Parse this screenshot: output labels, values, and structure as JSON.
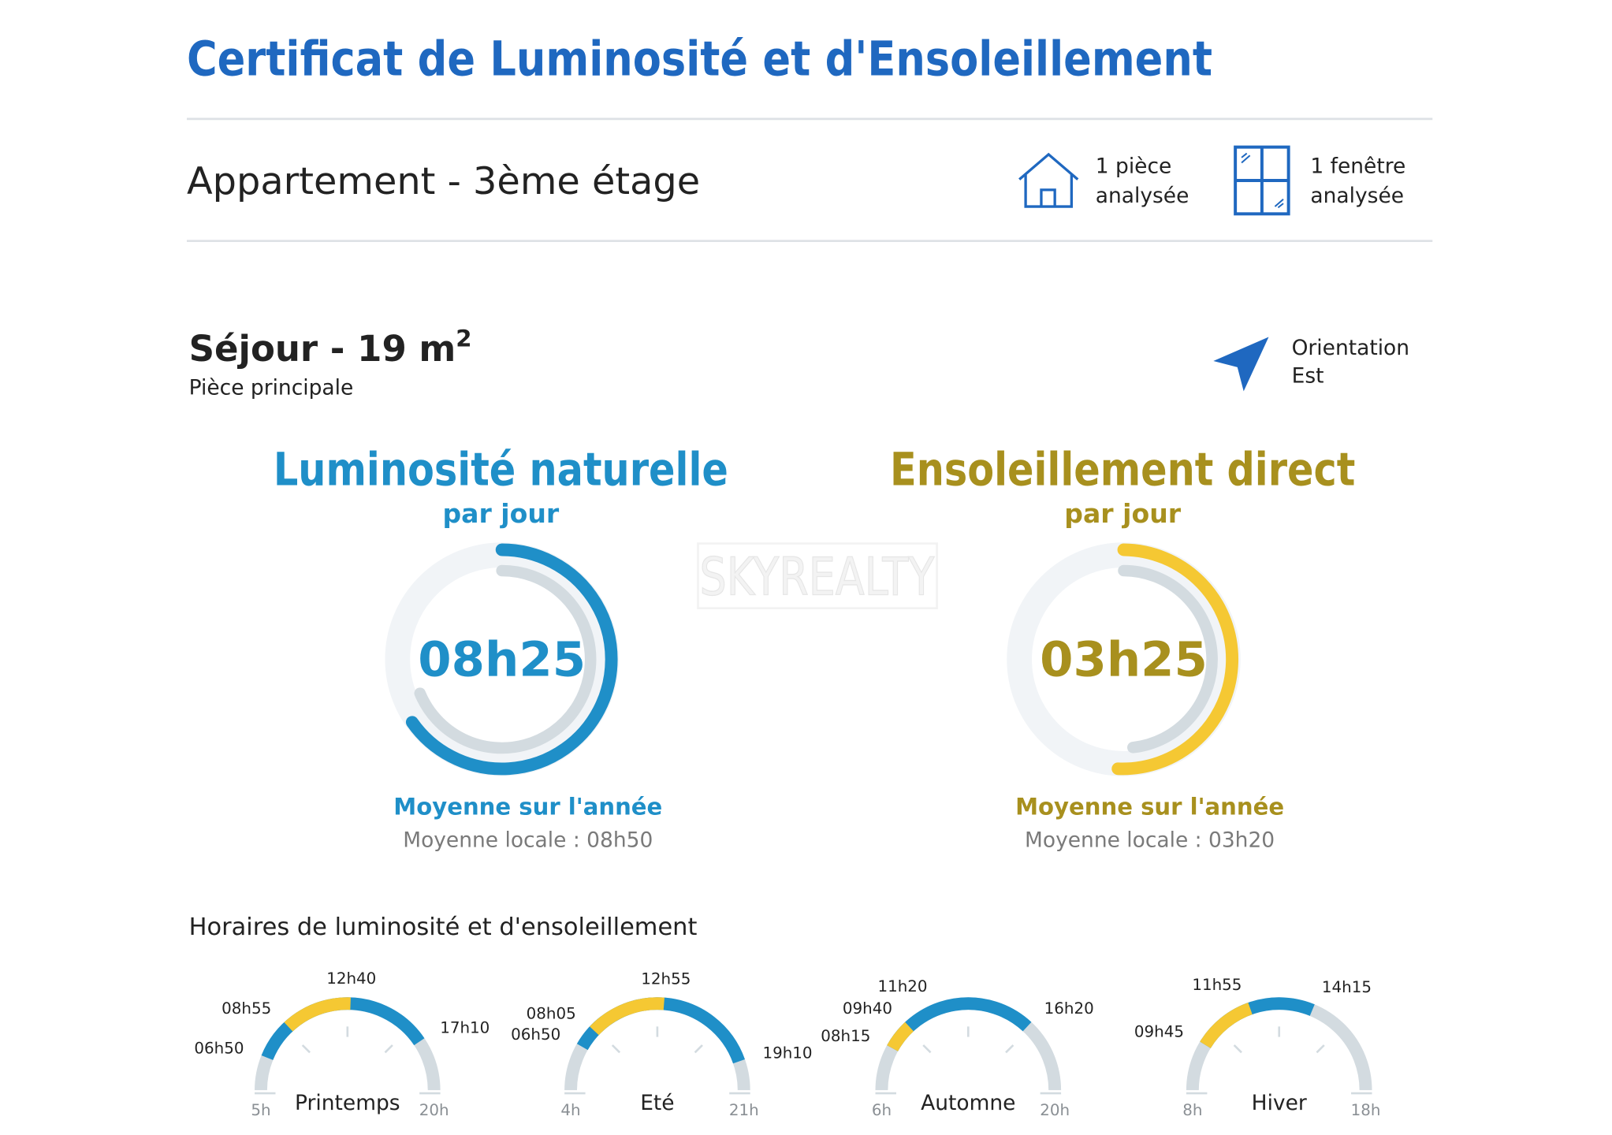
{
  "header": {
    "title": "Certificat de Luminosité et d'Ensoleillement",
    "property": "Appartement - 3ème étage",
    "rooms": [
      "1 pièce",
      "analysée"
    ],
    "windows": [
      "1 fenêtre",
      "analysée"
    ]
  },
  "room": {
    "name": "Séjour - 19 m",
    "name_sup": "2",
    "subtitle": "Pièce principale",
    "orientation": [
      "Orientation",
      "Est"
    ]
  },
  "watermark": "SKYREALTY",
  "luminosite": {
    "title": "Luminosité naturelle",
    "subtitle": "par jour",
    "value": "08h25",
    "average_label": "Moyenne sur l'année",
    "local_average": "Moyenne locale : 08h50"
  },
  "ensoleillement": {
    "title": "Ensoleillement direct",
    "subtitle": "par jour",
    "value": "03h25",
    "average_label": "Moyenne sur l'année",
    "local_average": "Moyenne locale : 03h20"
  },
  "schedule": {
    "title": "Horaires de luminosité et d'ensoleillement",
    "seasons": [
      {
        "name": "Printemps",
        "start": "5h",
        "end": "20h",
        "light": [
          "06h50",
          "17h10"
        ],
        "sun": [
          "08h55",
          "12h40"
        ]
      },
      {
        "name": "Eté",
        "start": "4h",
        "end": "21h",
        "light": [
          "06h50",
          "19h10"
        ],
        "sun": [
          "08h05",
          "12h55"
        ]
      },
      {
        "name": "Automne",
        "start": "6h",
        "end": "20h",
        "light": [
          "08h15",
          "16h20"
        ],
        "sun": [
          "08h15",
          "09h40"
        ],
        "markers": [
          "11h20"
        ]
      },
      {
        "name": "Hiver",
        "start": "8h",
        "end": "18h",
        "light": [
          "09h45",
          "14h15"
        ],
        "sun": [
          "09h45",
          "11h55"
        ]
      }
    ]
  }
}
